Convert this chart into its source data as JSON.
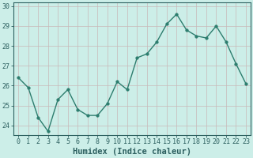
{
  "x": [
    0,
    1,
    2,
    3,
    4,
    5,
    6,
    7,
    8,
    9,
    10,
    11,
    12,
    13,
    14,
    15,
    16,
    17,
    18,
    19,
    20,
    21,
    22,
    23
  ],
  "y": [
    26.4,
    25.9,
    24.4,
    23.7,
    25.3,
    25.8,
    24.8,
    24.5,
    24.5,
    25.1,
    26.2,
    25.8,
    27.4,
    27.6,
    28.2,
    29.1,
    29.6,
    28.8,
    28.5,
    28.4,
    29.0,
    28.2,
    27.1,
    26.1
  ],
  "xlabel": "Humidex (Indice chaleur)",
  "ylabel": "",
  "ylim": [
    23.5,
    30.2
  ],
  "xlim": [
    -0.5,
    23.5
  ],
  "yticks": [
    24,
    25,
    26,
    27,
    28,
    29,
    30
  ],
  "xticks": [
    0,
    1,
    2,
    3,
    4,
    5,
    6,
    7,
    8,
    9,
    10,
    11,
    12,
    13,
    14,
    15,
    16,
    17,
    18,
    19,
    20,
    21,
    22,
    23
  ],
  "line_color": "#2d7d6e",
  "marker_color": "#2d7d6e",
  "bg_color": "#cceee8",
  "grid_color": "#c8b8b8",
  "axis_color": "#2d6060",
  "xlabel_color": "#2d6060",
  "tick_color": "#2d6060",
  "xlabel_fontsize": 7.5,
  "tick_fontsize": 6.0,
  "linewidth": 1.0,
  "markersize": 2.5
}
